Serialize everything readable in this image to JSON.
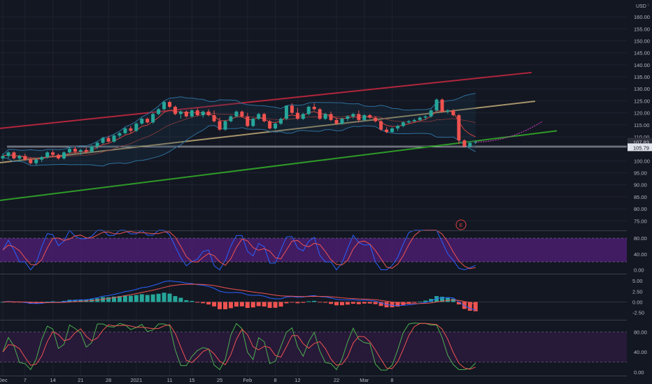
{
  "chart_data": {
    "type": "candlestick",
    "currency": "USD",
    "main": {
      "ylim": [
        71,
        167
      ],
      "y_ticks": [
        "160.00",
        "155.00",
        "150.00",
        "145.00",
        "140.00",
        "135.00",
        "130.00",
        "125.00",
        "120.00",
        "115.00",
        "110.00",
        "105.00",
        "100.00",
        "95.00",
        "90.00",
        "85.00",
        "80.00",
        "75.00"
      ],
      "y_tick_values": [
        160,
        155,
        150,
        145,
        140,
        135,
        130,
        125,
        120,
        115,
        110,
        105,
        100,
        95,
        90,
        85,
        80,
        75
      ],
      "price_labels": {
        "current": "107.83",
        "level": "105.79"
      },
      "price_values": {
        "current": 107.83,
        "level": 105.79
      },
      "horizontal_level": 105.79,
      "candles": [
        [
          101,
          103,
          100,
          102
        ],
        [
          102,
          104,
          101,
          103.5
        ],
        [
          103.5,
          104,
          100.5,
          101
        ],
        [
          101,
          102.5,
          99.5,
          102
        ],
        [
          102,
          103,
          100,
          100.5
        ],
        [
          100.5,
          101.5,
          98.5,
          99
        ],
        [
          99,
          101,
          98,
          100.5
        ],
        [
          100.5,
          102,
          99.5,
          101.5
        ],
        [
          101.5,
          104,
          101,
          103.5
        ],
        [
          103.5,
          104.5,
          101.5,
          102.5
        ],
        [
          102.5,
          103,
          100.5,
          101
        ],
        [
          101,
          104,
          100.5,
          103.5
        ],
        [
          103.5,
          106,
          103,
          105
        ],
        [
          105,
          106,
          103,
          103.8
        ],
        [
          103.8,
          105,
          102.5,
          104.5
        ],
        [
          104.5,
          105.5,
          103,
          103.8
        ],
        [
          103.8,
          106.5,
          103.3,
          106
        ],
        [
          106,
          108,
          105,
          107.5
        ],
        [
          107.5,
          110,
          107,
          109.5
        ],
        [
          109.5,
          110.5,
          107.5,
          108
        ],
        [
          108,
          111,
          107.5,
          110.5
        ],
        [
          110.5,
          112,
          109.5,
          111.5
        ],
        [
          111.5,
          114,
          111,
          113.5
        ],
        [
          113.5,
          114.5,
          111.5,
          112.5
        ],
        [
          112.5,
          116,
          112,
          115.5
        ],
        [
          115.5,
          118,
          115,
          117.5
        ],
        [
          117.5,
          118,
          115.5,
          116
        ],
        [
          116,
          120,
          115.5,
          119.5
        ],
        [
          119.5,
          122,
          119,
          121.5
        ],
        [
          121.5,
          125,
          121,
          124.5
        ],
        [
          124.5,
          125,
          122,
          122.5
        ],
        [
          122.5,
          123,
          119,
          119.5
        ],
        [
          119.5,
          121,
          117.5,
          120.5
        ],
        [
          120.5,
          121,
          118,
          118.5
        ],
        [
          118.5,
          121.5,
          118,
          121
        ],
        [
          121,
          122,
          118.5,
          119
        ],
        [
          119,
          121,
          118,
          120.5
        ],
        [
          120.5,
          121.5,
          118.5,
          119
        ],
        [
          119,
          121,
          116,
          116.5
        ],
        [
          116.5,
          118,
          112.5,
          113
        ],
        [
          113,
          117,
          112.5,
          116.5
        ],
        [
          116.5,
          119,
          116,
          118.5
        ],
        [
          118.5,
          121,
          118,
          120.5
        ],
        [
          120.5,
          121,
          118,
          118.5
        ],
        [
          118.5,
          120,
          114,
          114.5
        ],
        [
          114.5,
          118,
          114,
          117.5
        ],
        [
          117.5,
          120,
          117,
          119.5
        ],
        [
          119.5,
          120,
          116,
          116.5
        ],
        [
          116.5,
          117,
          113,
          113.5
        ],
        [
          113.5,
          116,
          113,
          115.5
        ],
        [
          115.5,
          118,
          115,
          117.5
        ],
        [
          117.5,
          123,
          117,
          123
        ],
        [
          123,
          124,
          119.5,
          120
        ],
        [
          120,
          122,
          117,
          117.5
        ],
        [
          117.5,
          120,
          117,
          119.5
        ],
        [
          119.5,
          123,
          119,
          122.5
        ],
        [
          122.5,
          124,
          121,
          121.5
        ],
        [
          121.5,
          122,
          117,
          117.5
        ],
        [
          117.5,
          120,
          117,
          119.5
        ],
        [
          119.5,
          120.5,
          116.5,
          117
        ],
        [
          117,
          118,
          115,
          115.5
        ],
        [
          115.5,
          118,
          115,
          117.5
        ],
        [
          117.5,
          119,
          116.5,
          118.5
        ],
        [
          118.5,
          120,
          117.5,
          119.5
        ],
        [
          119.5,
          121,
          116,
          117
        ],
        [
          117,
          119.5,
          116.5,
          119
        ],
        [
          119,
          119.5,
          117.5,
          118
        ],
        [
          118,
          118.5,
          116,
          116.5
        ],
        [
          116.5,
          117,
          112.5,
          113
        ],
        [
          113,
          114,
          111.5,
          112
        ],
        [
          112,
          114,
          111.5,
          113.5
        ],
        [
          113.5,
          115,
          112.5,
          114.5
        ],
        [
          114.5,
          116.5,
          114,
          116
        ],
        [
          116,
          117,
          115.5,
          116.5
        ],
        [
          116.5,
          117.5,
          116,
          117
        ],
        [
          117,
          118.5,
          116.5,
          118
        ],
        [
          118,
          119,
          117,
          118.5
        ],
        [
          118.5,
          121.5,
          118,
          121
        ],
        [
          121,
          126,
          120.5,
          125.5
        ],
        [
          125.5,
          126,
          120,
          120.5
        ],
        [
          120.5,
          121.5,
          119.5,
          121
        ],
        [
          121,
          121.5,
          118.5,
          119
        ],
        [
          119,
          119.5,
          107,
          108.5
        ],
        [
          108.5,
          109,
          105.5,
          106
        ],
        [
          106,
          108,
          105.5,
          107.5
        ],
        [
          107.5,
          108.5,
          107,
          107.8
        ]
      ],
      "projection_after": 107.83,
      "trendlines": [
        {
          "name": "upper-channel",
          "color": "#b2263c",
          "points": [
            [
              0,
              113.5
            ],
            [
              760,
              136.8
            ]
          ]
        },
        {
          "name": "mid-channel",
          "color": "#a6946a",
          "points": [
            [
              0,
              99.2
            ],
            [
              765,
              124.8
            ]
          ]
        },
        {
          "name": "lower-channel",
          "color": "#2f9a28",
          "points": [
            [
              0,
              83.5
            ],
            [
              796,
              112.5
            ]
          ]
        }
      ],
      "colors": {
        "up": "#26a69a",
        "down": "#ef5350",
        "bollinger": "#2e6f9b",
        "fast_ma": "#e0463e",
        "projection": "#c23bb7",
        "level": "#b2b5be"
      },
      "earnings_marker": "E"
    },
    "stoch_rsi": {
      "ylim": [
        -10,
        98
      ],
      "ticks": [
        "80.00",
        "40.00",
        "0.00"
      ],
      "tick_values": [
        80,
        40,
        0
      ],
      "band": [
        20,
        80
      ],
      "colors": {
        "k": "#2962ff",
        "d": "#ef5350",
        "band": "#4a1d6e"
      }
    },
    "macd": {
      "ylim": [
        -4.2,
        6.5
      ],
      "ticks": [
        "5.00",
        "2.50",
        "0.00",
        "-2.50"
      ],
      "tick_values": [
        5,
        2.5,
        0,
        -2.5
      ],
      "colors": {
        "macd": "#2962ff",
        "signal": "#ef5350",
        "hist_up": "#26a69a",
        "hist_down": "#ef5350"
      }
    },
    "rsi_stoch": {
      "ylim": [
        -7,
        103
      ],
      "ticks": [
        "80.00",
        "40.00",
        "0.00"
      ],
      "tick_values": [
        80,
        40,
        0
      ],
      "band": [
        20,
        80
      ],
      "colors": {
        "k": "#4caf50",
        "d": "#ef5350",
        "band": "#2a1a3b"
      }
    },
    "x_axis": {
      "labels": [
        "Dec",
        "7",
        "14",
        "21",
        "28",
        "2021",
        "11",
        "15",
        "25",
        "Feb",
        "8",
        "12",
        "22",
        "Mar",
        "8"
      ],
      "label_candle_index": [
        0,
        4,
        9,
        14,
        19,
        24,
        30,
        34,
        39,
        44,
        49,
        53,
        60,
        65,
        70
      ]
    }
  }
}
